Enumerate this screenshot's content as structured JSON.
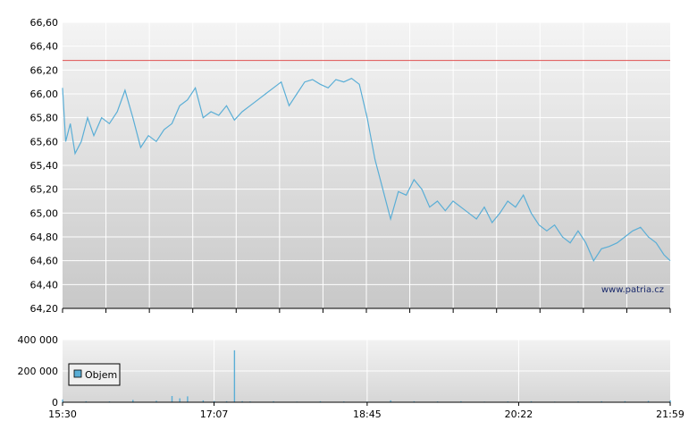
{
  "chart_data": [
    {
      "type": "line",
      "title": "",
      "xlabel": "",
      "ylabel": "",
      "ylim": [
        64.2,
        66.6
      ],
      "y_ticks": [
        "64,20",
        "64,40",
        "64,60",
        "64,80",
        "65,00",
        "65,20",
        "65,40",
        "65,60",
        "65,80",
        "66,00",
        "66,20",
        "66,40",
        "66,60"
      ],
      "reference_line": {
        "value": 66.28,
        "color": "#e05050"
      },
      "line_color": "#5aaed6",
      "grid": true,
      "watermark": "www.patria.cz",
      "series": [
        {
          "x": [
            "15:30",
            "15:32",
            "15:35",
            "15:38",
            "15:42",
            "15:46",
            "15:50",
            "15:55",
            "16:00",
            "16:05",
            "16:10",
            "16:15",
            "16:20",
            "16:25",
            "16:30",
            "16:35",
            "16:40",
            "16:45",
            "16:50",
            "16:55",
            "17:00",
            "17:05",
            "17:10",
            "17:15",
            "17:20",
            "17:25",
            "17:30",
            "17:35",
            "17:40",
            "17:45",
            "17:50",
            "17:55",
            "18:00",
            "18:05",
            "18:10",
            "18:15",
            "18:20",
            "18:25",
            "18:30",
            "18:35",
            "18:40",
            "18:45",
            "18:50",
            "18:55",
            "19:00",
            "19:05",
            "19:10",
            "19:15",
            "19:20",
            "19:25",
            "19:30",
            "19:35",
            "19:40",
            "19:45",
            "19:50",
            "19:55",
            "20:00",
            "20:05",
            "20:10",
            "20:15",
            "20:20",
            "20:25",
            "20:30",
            "20:35",
            "20:40",
            "20:45",
            "20:50",
            "20:55",
            "21:00",
            "21:05",
            "21:10",
            "21:15",
            "21:20",
            "21:25",
            "21:30",
            "21:35",
            "21:40",
            "21:45",
            "21:50",
            "21:55",
            "21:59"
          ],
          "values": [
            66.05,
            65.6,
            65.75,
            65.5,
            65.6,
            65.8,
            65.65,
            65.8,
            65.75,
            65.85,
            66.03,
            65.8,
            65.55,
            65.65,
            65.6,
            65.7,
            65.75,
            65.9,
            65.95,
            66.05,
            65.8,
            65.85,
            65.82,
            65.9,
            65.78,
            65.85,
            65.9,
            65.95,
            66.0,
            66.05,
            66.1,
            65.9,
            66.0,
            66.1,
            66.12,
            66.08,
            66.05,
            66.12,
            66.1,
            66.13,
            66.08,
            65.8,
            65.45,
            65.2,
            64.95,
            65.18,
            65.15,
            65.28,
            65.2,
            65.05,
            65.1,
            65.02,
            65.1,
            65.05,
            65.0,
            64.95,
            65.05,
            64.92,
            65.0,
            65.1,
            65.05,
            65.15,
            65.0,
            64.9,
            64.85,
            64.9,
            64.8,
            64.75,
            64.85,
            64.75,
            64.6,
            64.7,
            64.72,
            64.75,
            64.8,
            64.85,
            64.88,
            64.8,
            64.75,
            64.65,
            64.6
          ]
        }
      ]
    },
    {
      "type": "bar",
      "title": "",
      "xlabel": "",
      "ylabel": "",
      "ylim": [
        0,
        400000
      ],
      "y_ticks": [
        "0",
        "200 000",
        "400 000"
      ],
      "x_ticks": [
        "15:30",
        "17:07",
        "18:45",
        "20:22",
        "21:59"
      ],
      "bar_color": "#5aaed6",
      "grid": true,
      "legend": {
        "label": "Objem",
        "position": "top-left",
        "color": "#5aaed6"
      },
      "series": [
        {
          "name": "Objem",
          "x": [
            "15:30",
            "15:45",
            "16:00",
            "16:15",
            "16:30",
            "16:40",
            "16:45",
            "16:50",
            "17:00",
            "17:07",
            "17:15",
            "17:20",
            "17:25",
            "17:30",
            "17:45",
            "18:00",
            "18:15",
            "18:30",
            "18:45",
            "19:00",
            "19:15",
            "19:30",
            "19:45",
            "20:00",
            "20:15",
            "20:30",
            "20:45",
            "21:00",
            "21:15",
            "21:30",
            "21:45",
            "21:59"
          ],
          "values": [
            18000,
            6000,
            5000,
            15000,
            9000,
            40000,
            25000,
            38000,
            12000,
            8000,
            6000,
            332000,
            7000,
            5000,
            6000,
            4000,
            6000,
            5000,
            4000,
            12000,
            6000,
            5000,
            6000,
            4000,
            5000,
            6000,
            4000,
            5000,
            6000,
            7000,
            8000,
            12000
          ]
        }
      ]
    }
  ]
}
